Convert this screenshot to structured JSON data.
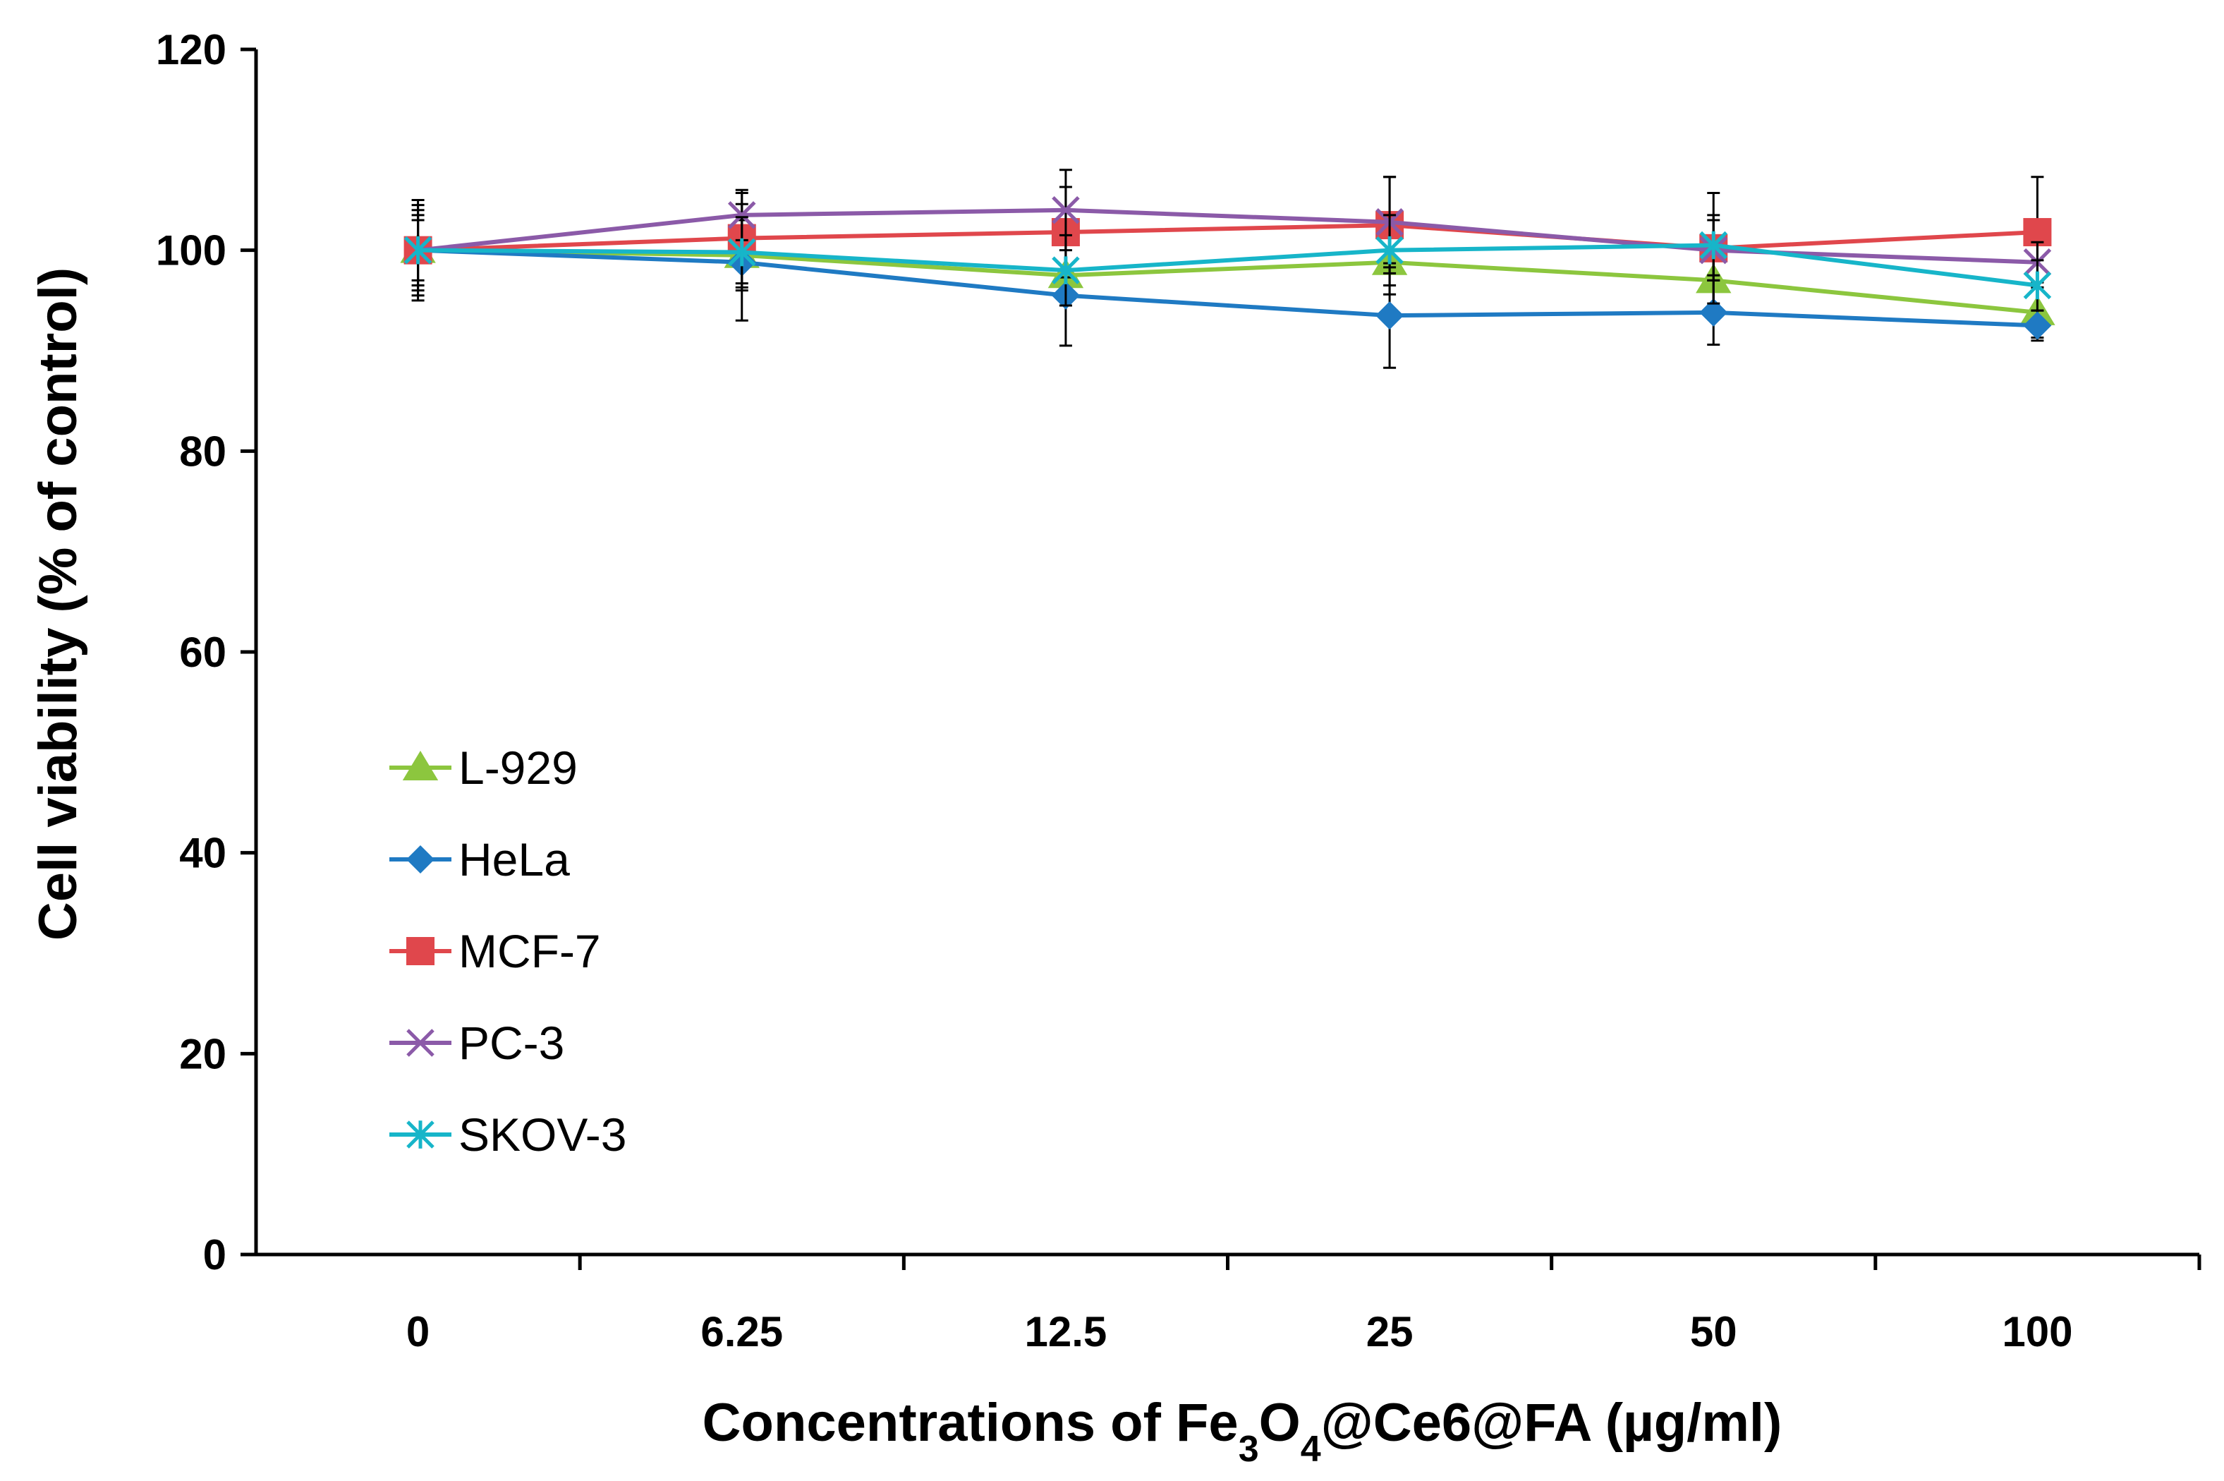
{
  "chart_data": {
    "type": "line",
    "title": "",
    "categories": [
      "0",
      "6.25",
      "12.5",
      "25",
      "50",
      "100"
    ],
    "xlabel": {
      "prefix": "Concentrations of Fe",
      "sub1": "3",
      "mid": "O",
      "sub2": "4",
      "suffix": "@Ce6@FA (µg/ml)"
    },
    "ylabel": "Cell viability (% of control)",
    "ylim": [
      0,
      120
    ],
    "yticks": [
      0,
      20,
      40,
      60,
      80,
      100,
      120
    ],
    "ytick_labels": [
      "0",
      "20",
      "40",
      "60",
      "80",
      "100",
      "120"
    ],
    "grid": false,
    "legend_position": "center-left",
    "series": [
      {
        "name": "L-929",
        "color": "#8cc63e",
        "marker": "triangle",
        "values": [
          100,
          99.5,
          97.5,
          98.8,
          97.0,
          93.8
        ],
        "errors": [
          3.0,
          3.5,
          3.0,
          3.2,
          3.0,
          2.5
        ]
      },
      {
        "name": "HeLa",
        "color": "#1f7ac3",
        "marker": "diamond",
        "values": [
          100,
          98.8,
          95.5,
          93.5,
          93.8,
          92.5
        ],
        "errors": [
          5.0,
          5.8,
          5.0,
          5.2,
          3.2,
          1.5
        ]
      },
      {
        "name": "MCF-7",
        "color": "#e0474c",
        "marker": "square",
        "values": [
          100,
          101.2,
          101.8,
          102.5,
          100.2,
          101.8
        ],
        "errors": [
          4.5,
          4.5,
          4.5,
          4.8,
          5.5,
          5.5
        ]
      },
      {
        "name": "PC-3",
        "color": "#8b5aa8",
        "marker": "x",
        "values": [
          100,
          103.5,
          104.0,
          102.8,
          100.0,
          98.8
        ],
        "errors": [
          3.5,
          2.5,
          4.0,
          4.5,
          3.0,
          2.0
        ]
      },
      {
        "name": "SKOV-3",
        "color": "#17b5c9",
        "marker": "asterisk",
        "values": [
          100,
          99.8,
          98.0,
          100.0,
          100.5,
          96.5
        ],
        "errors": [
          4.0,
          3.5,
          3.5,
          3.5,
          3.0,
          2.5
        ]
      }
    ]
  }
}
